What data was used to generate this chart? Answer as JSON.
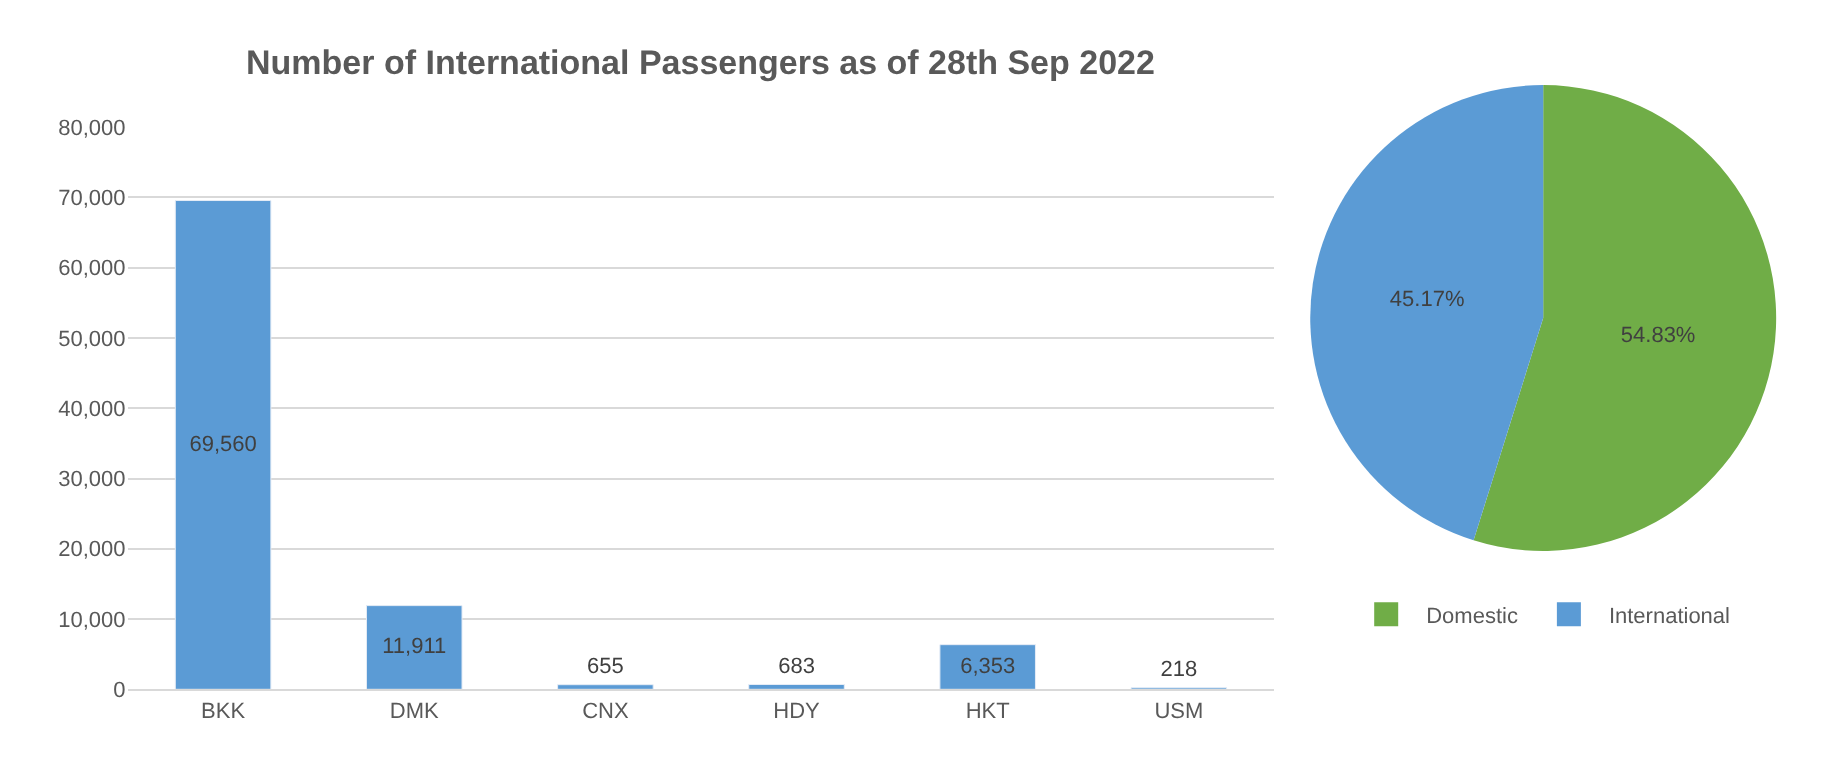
{
  "chart_data": [
    {
      "type": "bar",
      "title": "Number of International Passengers as of 28th Sep 2022",
      "categories": [
        "BKK",
        "DMK",
        "CNX",
        "HDY",
        "HKT",
        "USM"
      ],
      "values": [
        69560,
        11911,
        655,
        683,
        6353,
        218
      ],
      "color": "#5b9bd5",
      "ylim": [
        0,
        80000
      ],
      "yticks": [
        {
          "value": 0,
          "label": "0"
        },
        {
          "value": 10000,
          "label": "10,000"
        },
        {
          "value": 20000,
          "label": "20,000"
        },
        {
          "value": 30000,
          "label": "30,000"
        },
        {
          "value": 40000,
          "label": "40,000"
        },
        {
          "value": 50000,
          "label": "50,000"
        },
        {
          "value": 60000,
          "label": "60,000"
        },
        {
          "value": 70000,
          "label": "70,000"
        },
        {
          "value": 80000,
          "label": "80,000"
        }
      ],
      "grid": "y",
      "value_labels": [
        "69,560",
        "11,911",
        "655",
        "683",
        "6,353",
        "218"
      ]
    },
    {
      "type": "pie",
      "categories": [
        "Domestic",
        "International"
      ],
      "values": [
        54.83,
        45.17
      ],
      "colors": [
        "#70ad47",
        "#5b9bd5"
      ],
      "value_labels": [
        "54.83%",
        "45.17%"
      ],
      "legend": "bottom"
    }
  ]
}
